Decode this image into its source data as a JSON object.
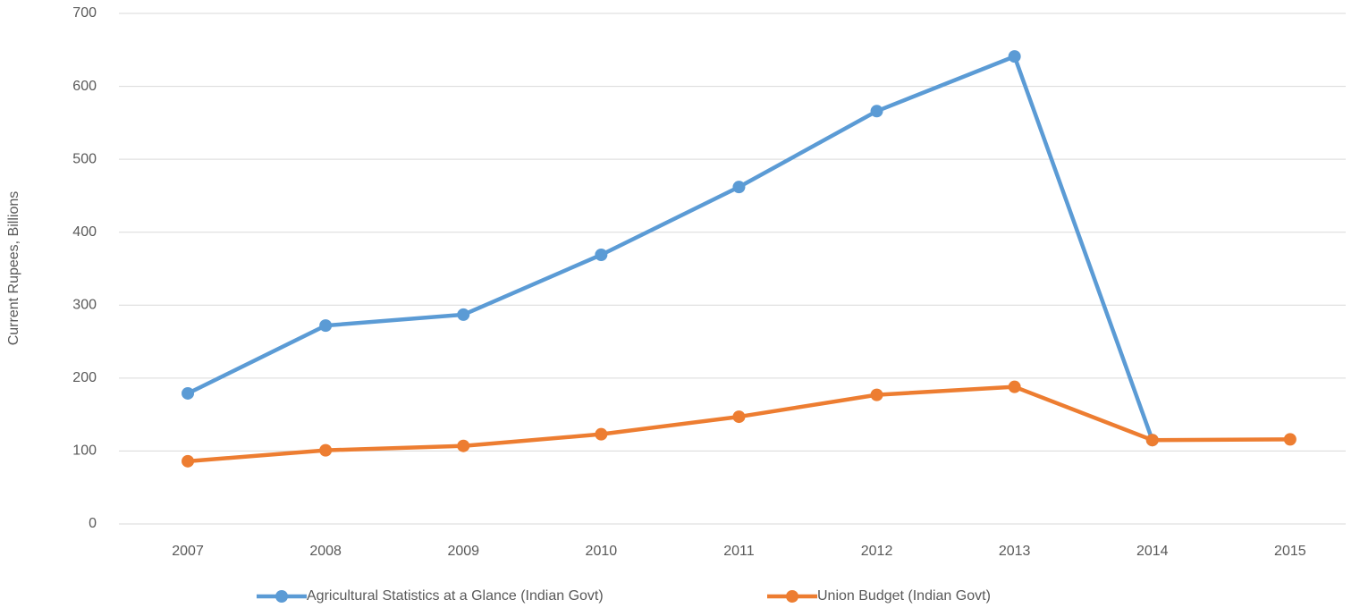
{
  "chart_data": {
    "type": "line",
    "y_label": "Current Rupees, Billions",
    "categories": [
      "2007",
      "2008",
      "2009",
      "2010",
      "2011",
      "2012",
      "2013",
      "2014",
      "2015"
    ],
    "series": [
      {
        "name": "Agricultural Statistics at a Glance (Indian Govt)",
        "color": "#5b9bd5",
        "values": [
          179,
          272,
          287,
          369,
          462,
          566,
          641,
          115,
          null
        ]
      },
      {
        "name": "Union Budget (Indian Govt)",
        "color": "#ed7d31",
        "values": [
          86,
          101,
          107,
          123,
          147,
          177,
          188,
          115,
          116
        ]
      }
    ],
    "ylim": [
      0,
      700
    ],
    "yticks": [
      0,
      100,
      200,
      300,
      400,
      500,
      600,
      700
    ],
    "grid": true,
    "legend": "bottom"
  }
}
